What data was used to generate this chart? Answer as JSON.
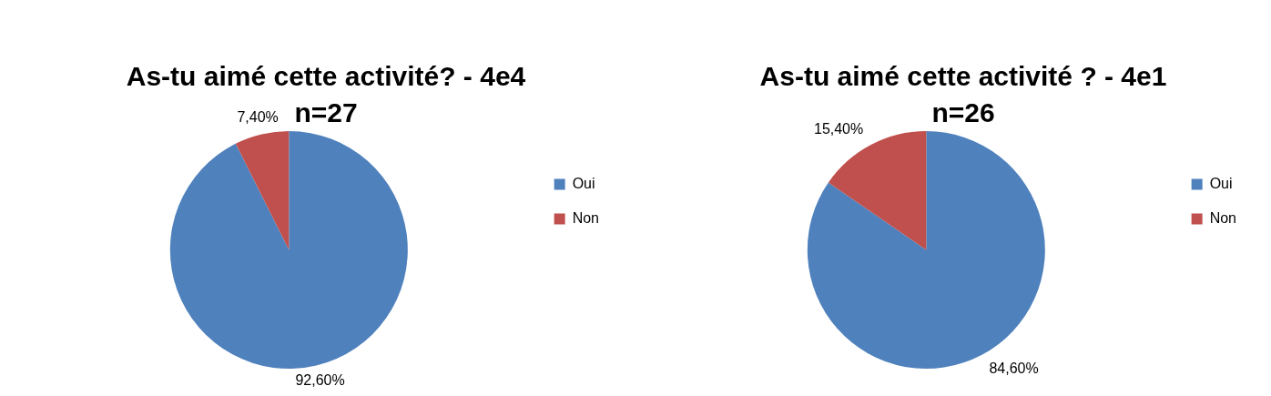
{
  "chart_data": [
    {
      "type": "pie",
      "title": "As-tu aimé cette activité? - 4e4",
      "subtitle": "n=27",
      "categories": [
        "Oui",
        "Non"
      ],
      "values": [
        92.6,
        7.4
      ],
      "colors": [
        "#4f81bd",
        "#c0504d"
      ],
      "value_labels": [
        "92,60%",
        "7,40%"
      ],
      "legend": "right"
    },
    {
      "type": "pie",
      "title": "As-tu aimé cette activité ? - 4e1",
      "subtitle": "n=26",
      "categories": [
        "Oui",
        "Non"
      ],
      "values": [
        84.6,
        15.4
      ],
      "colors": [
        "#4f81bd",
        "#c0504d"
      ],
      "value_labels": [
        "84,60%",
        "15,40%"
      ],
      "legend": "right"
    }
  ]
}
